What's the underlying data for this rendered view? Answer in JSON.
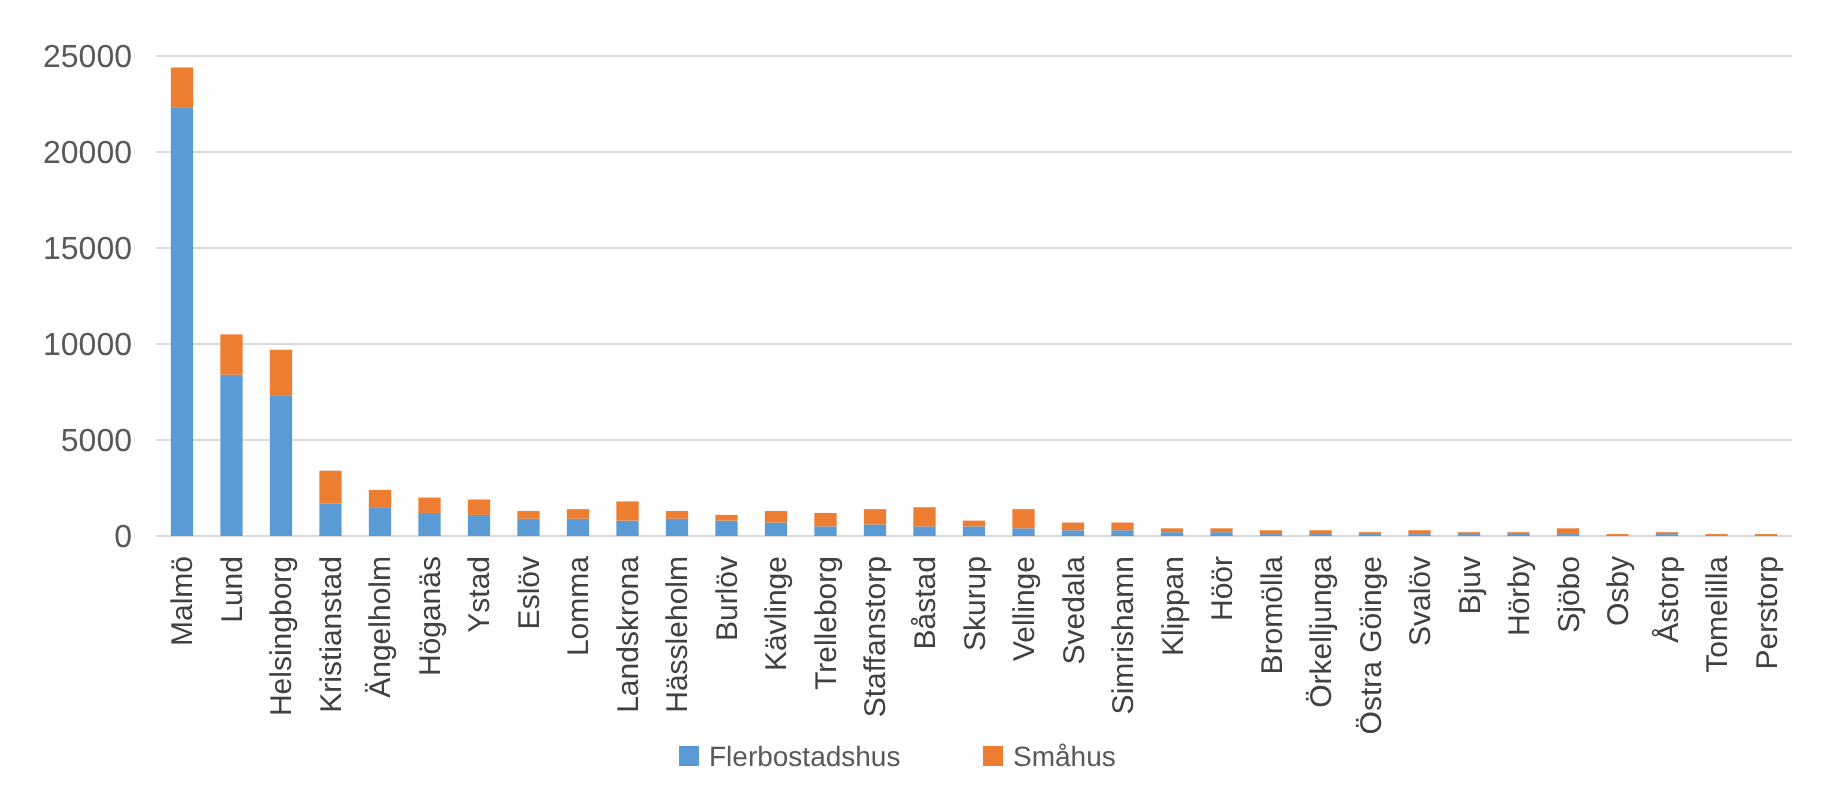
{
  "chart_data": {
    "type": "bar",
    "stacked": true,
    "categories": [
      "Malmö",
      "Lund",
      "Helsingborg",
      "Kristianstad",
      "Ängelholm",
      "Höganäs",
      "Ystad",
      "Eslöv",
      "Lomma",
      "Landskrona",
      "Hässleholm",
      "Burlöv",
      "Kävlinge",
      "Trelleborg",
      "Staffanstorp",
      "Båstad",
      "Skurup",
      "Vellinge",
      "Svedala",
      "Simrishamn",
      "Klippan",
      "Höör",
      "Bromölla",
      "Örkelljunga",
      "Östra Göinge",
      "Svalöv",
      "Bjuv",
      "Hörby",
      "Sjöbo",
      "Osby",
      "Åstorp",
      "Tomelilla",
      "Perstorp"
    ],
    "series": [
      {
        "name": "Flerbostadshus",
        "color": "#5b9bd5",
        "values": [
          22300,
          8400,
          7300,
          1700,
          1500,
          1200,
          1100,
          900,
          900,
          800,
          900,
          800,
          700,
          500,
          600,
          500,
          500,
          400,
          300,
          300,
          200,
          200,
          100,
          100,
          100,
          100,
          100,
          100,
          100,
          null,
          100,
          null,
          null
        ]
      },
      {
        "name": "Småhus",
        "color": "#ed7d31",
        "values": [
          2100,
          2100,
          2400,
          1700,
          900,
          800,
          800,
          400,
          500,
          1000,
          400,
          300,
          600,
          700,
          800,
          1000,
          300,
          1000,
          400,
          400,
          200,
          200,
          200,
          200,
          100,
          200,
          100,
          100,
          300,
          100,
          100,
          100,
          100
        ]
      }
    ],
    "ylim": [
      0,
      25000
    ],
    "yticks": [
      0,
      5000,
      10000,
      15000,
      20000,
      25000
    ],
    "grid": "y",
    "legend": "bottom"
  }
}
